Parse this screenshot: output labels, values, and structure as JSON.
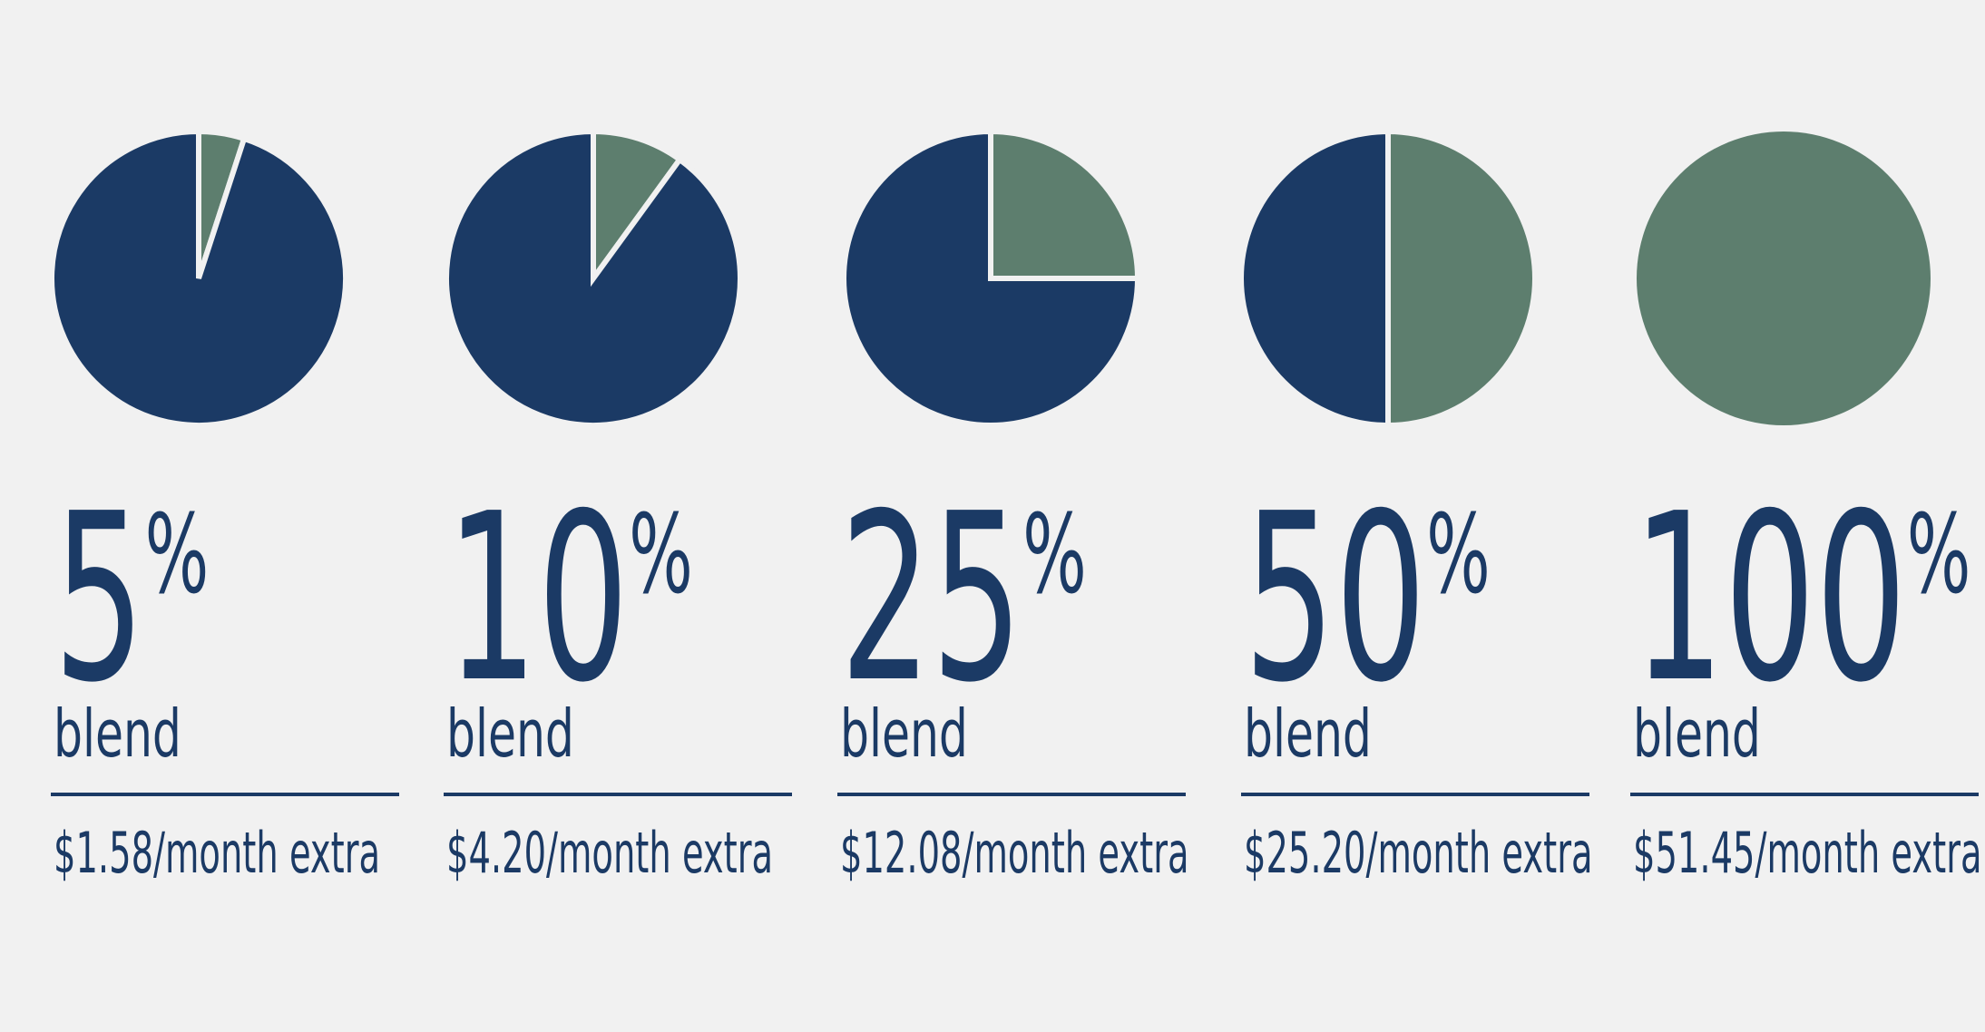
{
  "chart_data": [
    {
      "type": "pie",
      "values": [
        5,
        95
      ],
      "value_labels": [
        "5%",
        null
      ],
      "colors": [
        "#5d7e6e",
        "#1b3a65"
      ],
      "subtitle": "blend",
      "caption": "$1.58/month extra"
    },
    {
      "type": "pie",
      "values": [
        10,
        90
      ],
      "value_labels": [
        "10%",
        null
      ],
      "colors": [
        "#5d7e6e",
        "#1b3a65"
      ],
      "subtitle": "blend",
      "caption": "$4.20/month extra"
    },
    {
      "type": "pie",
      "values": [
        25,
        75
      ],
      "value_labels": [
        "25%",
        null
      ],
      "colors": [
        "#5d7e6e",
        "#1b3a65"
      ],
      "subtitle": "blend",
      "caption": "$12.08/month extra"
    },
    {
      "type": "pie",
      "values": [
        50,
        50
      ],
      "value_labels": [
        "50%",
        null
      ],
      "colors": [
        "#5d7e6e",
        "#1b3a65"
      ],
      "subtitle": "blend",
      "caption": "$25.20/month extra"
    },
    {
      "type": "pie",
      "values": [
        100,
        0
      ],
      "value_labels": [
        "100%",
        null
      ],
      "colors": [
        "#5d7e6e",
        "#1b3a65"
      ],
      "subtitle": "blend",
      "caption": "$51.45/month extra"
    }
  ]
}
